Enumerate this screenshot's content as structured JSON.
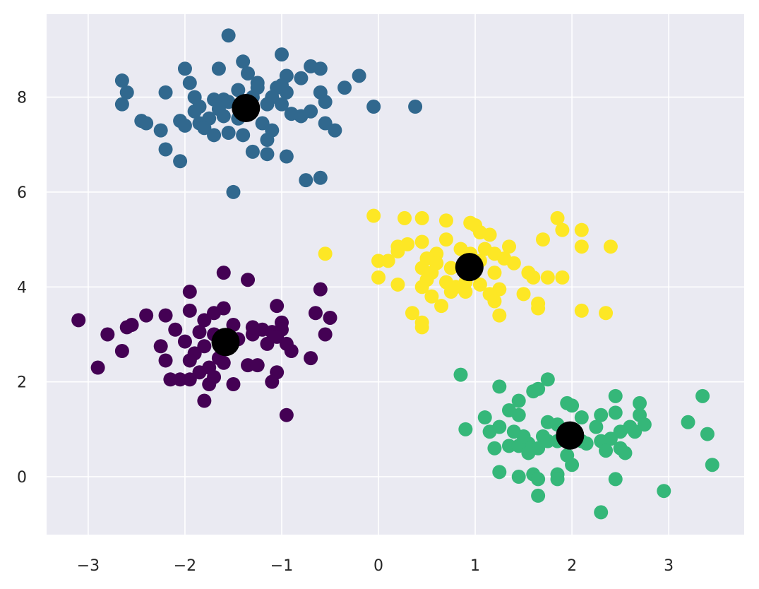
{
  "chart_data": {
    "type": "scatter",
    "title": "",
    "xlabel": "",
    "ylabel": "",
    "xlim": [
      -3.43,
      3.78
    ],
    "ylim": [
      -1.22,
      9.75
    ],
    "grid": true,
    "legend": "none",
    "background_color": "#eaeaf2",
    "grid_color": "#ffffff",
    "x_ticks": [
      -3,
      -2,
      -1,
      0,
      1,
      2,
      3
    ],
    "y_ticks": [
      0,
      2,
      4,
      6,
      8
    ],
    "x_tick_labels": [
      "−3",
      "−2",
      "−1",
      "0",
      "1",
      "2",
      "3"
    ],
    "y_tick_labels": [
      "0",
      "2",
      "4",
      "6",
      "8"
    ],
    "series": [
      {
        "color": "#31688e",
        "points": [
          [
            -1.55,
            9.3
          ],
          [
            -1.0,
            8.9
          ],
          [
            -1.4,
            8.75
          ],
          [
            -0.7,
            8.65
          ],
          [
            -0.6,
            8.6
          ],
          [
            -1.65,
            8.6
          ],
          [
            -2.0,
            8.6
          ],
          [
            -0.2,
            8.45
          ],
          [
            -1.35,
            8.5
          ],
          [
            -0.95,
            8.45
          ],
          [
            -2.65,
            8.35
          ],
          [
            -1.95,
            8.3
          ],
          [
            -1.25,
            8.3
          ],
          [
            -0.8,
            8.4
          ],
          [
            -1.05,
            8.2
          ],
          [
            -1.45,
            8.15
          ],
          [
            -0.35,
            8.2
          ],
          [
            -2.2,
            8.1
          ],
          [
            -2.6,
            8.1
          ],
          [
            -1.9,
            8.0
          ],
          [
            -1.7,
            7.95
          ],
          [
            -1.6,
            7.95
          ],
          [
            -1.1,
            8.0
          ],
          [
            -1.55,
            7.9
          ],
          [
            -0.95,
            8.1
          ],
          [
            -1.3,
            8.0
          ],
          [
            -0.6,
            8.1
          ],
          [
            -2.65,
            7.85
          ],
          [
            -1.85,
            7.8
          ],
          [
            -1.15,
            7.85
          ],
          [
            -0.55,
            7.9
          ],
          [
            -1.0,
            7.85
          ],
          [
            -0.05,
            7.8
          ],
          [
            0.38,
            7.8
          ],
          [
            -1.9,
            7.7
          ],
          [
            -1.6,
            7.6
          ],
          [
            -0.9,
            7.65
          ],
          [
            -0.7,
            7.7
          ],
          [
            -1.75,
            7.55
          ],
          [
            -1.45,
            7.55
          ],
          [
            -2.45,
            7.5
          ],
          [
            -2.05,
            7.5
          ],
          [
            -1.85,
            7.45
          ],
          [
            -0.55,
            7.45
          ],
          [
            -1.2,
            7.45
          ],
          [
            -2.4,
            7.45
          ],
          [
            -2.25,
            7.3
          ],
          [
            -1.8,
            7.35
          ],
          [
            -1.55,
            7.25
          ],
          [
            -1.4,
            7.2
          ],
          [
            -0.45,
            7.3
          ],
          [
            -1.1,
            7.3
          ],
          [
            -1.7,
            7.2
          ],
          [
            -1.15,
            7.1
          ],
          [
            -2.2,
            6.9
          ],
          [
            -1.3,
            6.85
          ],
          [
            -1.15,
            6.8
          ],
          [
            -0.95,
            6.75
          ],
          [
            -2.05,
            6.65
          ],
          [
            -0.75,
            6.25
          ],
          [
            -0.6,
            6.3
          ],
          [
            -1.5,
            6.0
          ],
          [
            -1.35,
            7.9
          ],
          [
            -1.25,
            8.2
          ],
          [
            -1.0,
            8.25
          ],
          [
            -0.8,
            7.6
          ],
          [
            -1.65,
            7.75
          ],
          [
            -2.0,
            7.4
          ]
        ]
      },
      {
        "color": "#fde725",
        "points": [
          [
            -0.05,
            5.5
          ],
          [
            0.27,
            5.45
          ],
          [
            0.45,
            5.45
          ],
          [
            0.7,
            5.4
          ],
          [
            0.95,
            5.35
          ],
          [
            1.0,
            5.3
          ],
          [
            1.85,
            5.45
          ],
          [
            1.05,
            5.15
          ],
          [
            1.15,
            5.1
          ],
          [
            1.9,
            5.2
          ],
          [
            2.1,
            5.2
          ],
          [
            0.7,
            5.0
          ],
          [
            0.45,
            4.95
          ],
          [
            0.3,
            4.9
          ],
          [
            0.2,
            4.85
          ],
          [
            1.35,
            4.85
          ],
          [
            2.4,
            4.85
          ],
          [
            2.1,
            4.85
          ],
          [
            1.7,
            5.0
          ],
          [
            1.1,
            4.8
          ],
          [
            0.85,
            4.8
          ],
          [
            0.2,
            4.75
          ],
          [
            0.6,
            4.7
          ],
          [
            -0.55,
            4.7
          ],
          [
            0.5,
            4.6
          ],
          [
            1.2,
            4.7
          ],
          [
            1.4,
            4.5
          ],
          [
            0.0,
            4.55
          ],
          [
            0.1,
            4.55
          ],
          [
            0.75,
            4.4
          ],
          [
            0.45,
            4.4
          ],
          [
            0.55,
            4.3
          ],
          [
            1.2,
            4.3
          ],
          [
            1.55,
            4.3
          ],
          [
            1.6,
            4.2
          ],
          [
            1.75,
            4.2
          ],
          [
            1.9,
            4.2
          ],
          [
            0.5,
            4.15
          ],
          [
            0.7,
            4.1
          ],
          [
            0.9,
            4.1
          ],
          [
            0.0,
            4.2
          ],
          [
            0.2,
            4.05
          ],
          [
            0.45,
            4.0
          ],
          [
            0.55,
            3.8
          ],
          [
            0.75,
            3.9
          ],
          [
            1.05,
            4.05
          ],
          [
            1.25,
            3.95
          ],
          [
            1.5,
            3.85
          ],
          [
            0.9,
            3.9
          ],
          [
            1.15,
            3.85
          ],
          [
            1.2,
            3.7
          ],
          [
            0.65,
            3.6
          ],
          [
            1.65,
            3.65
          ],
          [
            1.65,
            3.55
          ],
          [
            0.35,
            3.45
          ],
          [
            1.25,
            3.4
          ],
          [
            2.1,
            3.5
          ],
          [
            2.35,
            3.45
          ],
          [
            0.45,
            3.25
          ],
          [
            0.45,
            3.15
          ],
          [
            0.8,
            4.0
          ],
          [
            1.3,
            4.6
          ],
          [
            0.6,
            4.5
          ],
          [
            1.05,
            4.55
          ],
          [
            0.95,
            4.7
          ]
        ]
      },
      {
        "color": "#440154",
        "points": [
          [
            -1.6,
            4.3
          ],
          [
            -1.35,
            4.15
          ],
          [
            -1.95,
            3.9
          ],
          [
            -0.6,
            3.95
          ],
          [
            -1.05,
            3.6
          ],
          [
            -1.6,
            3.55
          ],
          [
            -1.95,
            3.5
          ],
          [
            -2.2,
            3.4
          ],
          [
            -2.4,
            3.4
          ],
          [
            -1.7,
            3.45
          ],
          [
            -0.65,
            3.45
          ],
          [
            -0.5,
            3.35
          ],
          [
            -3.1,
            3.3
          ],
          [
            -1.8,
            3.3
          ],
          [
            -1.5,
            3.2
          ],
          [
            -1.0,
            3.25
          ],
          [
            -2.55,
            3.2
          ],
          [
            -2.6,
            3.15
          ],
          [
            -2.1,
            3.1
          ],
          [
            -1.85,
            3.05
          ],
          [
            -1.3,
            3.0
          ],
          [
            -1.2,
            3.1
          ],
          [
            -1.1,
            3.05
          ],
          [
            -1.0,
            3.1
          ],
          [
            -2.8,
            3.0
          ],
          [
            -1.7,
            3.0
          ],
          [
            -0.55,
            3.0
          ],
          [
            -1.45,
            2.9
          ],
          [
            -1.15,
            2.8
          ],
          [
            -2.0,
            2.85
          ],
          [
            -1.8,
            2.75
          ],
          [
            -0.95,
            2.8
          ],
          [
            -2.25,
            2.75
          ],
          [
            -2.65,
            2.65
          ],
          [
            -1.9,
            2.6
          ],
          [
            -1.65,
            2.5
          ],
          [
            -0.9,
            2.65
          ],
          [
            -0.7,
            2.5
          ],
          [
            -2.2,
            2.45
          ],
          [
            -1.95,
            2.45
          ],
          [
            -1.6,
            2.4
          ],
          [
            -1.35,
            2.35
          ],
          [
            -1.25,
            2.35
          ],
          [
            -1.75,
            2.3
          ],
          [
            -1.85,
            2.2
          ],
          [
            -1.05,
            2.2
          ],
          [
            -2.9,
            2.3
          ],
          [
            -1.7,
            2.1
          ],
          [
            -2.05,
            2.05
          ],
          [
            -1.95,
            2.05
          ],
          [
            -1.1,
            2.0
          ],
          [
            -2.15,
            2.05
          ],
          [
            -1.75,
            1.95
          ],
          [
            -1.5,
            1.95
          ],
          [
            -1.8,
            1.6
          ],
          [
            -0.95,
            1.3
          ],
          [
            -1.3,
            3.15
          ],
          [
            -1.05,
            2.95
          ]
        ]
      },
      {
        "color": "#35b779",
        "points": [
          [
            0.85,
            2.15
          ],
          [
            1.75,
            2.05
          ],
          [
            1.25,
            1.9
          ],
          [
            1.65,
            1.85
          ],
          [
            1.6,
            1.8
          ],
          [
            2.45,
            1.7
          ],
          [
            3.35,
            1.7
          ],
          [
            1.45,
            1.6
          ],
          [
            1.95,
            1.55
          ],
          [
            2.7,
            1.55
          ],
          [
            1.35,
            1.4
          ],
          [
            2.0,
            1.5
          ],
          [
            1.1,
            1.25
          ],
          [
            1.45,
            1.3
          ],
          [
            2.3,
            1.3
          ],
          [
            2.45,
            1.35
          ],
          [
            2.7,
            1.3
          ],
          [
            3.2,
            1.15
          ],
          [
            1.75,
            1.15
          ],
          [
            1.85,
            1.1
          ],
          [
            2.75,
            1.1
          ],
          [
            2.6,
            1.05
          ],
          [
            0.9,
            1.0
          ],
          [
            1.15,
            0.95
          ],
          [
            1.25,
            1.05
          ],
          [
            1.4,
            0.95
          ],
          [
            2.1,
            1.25
          ],
          [
            2.25,
            1.05
          ],
          [
            2.5,
            0.95
          ],
          [
            2.65,
            0.95
          ],
          [
            3.4,
            0.9
          ],
          [
            1.55,
            0.7
          ],
          [
            1.7,
            0.85
          ],
          [
            2.1,
            0.75
          ],
          [
            2.3,
            0.75
          ],
          [
            2.4,
            0.8
          ],
          [
            1.2,
            0.6
          ],
          [
            1.35,
            0.65
          ],
          [
            1.45,
            0.65
          ],
          [
            1.65,
            0.6
          ],
          [
            1.85,
            0.75
          ],
          [
            2.15,
            0.7
          ],
          [
            2.35,
            0.55
          ],
          [
            2.5,
            0.6
          ],
          [
            2.55,
            0.5
          ],
          [
            1.55,
            0.5
          ],
          [
            1.95,
            0.45
          ],
          [
            2.0,
            0.25
          ],
          [
            3.45,
            0.25
          ],
          [
            1.25,
            0.1
          ],
          [
            1.6,
            0.05
          ],
          [
            1.85,
            0.05
          ],
          [
            1.45,
            0.0
          ],
          [
            1.65,
            -0.05
          ],
          [
            1.85,
            -0.05
          ],
          [
            2.45,
            -0.05
          ],
          [
            2.95,
            -0.3
          ],
          [
            1.65,
            -0.4
          ],
          [
            2.3,
            -0.75
          ],
          [
            1.75,
            0.75
          ],
          [
            2.05,
            0.9
          ],
          [
            1.5,
            0.85
          ]
        ]
      }
    ],
    "centers": {
      "color": "#000000",
      "points": [
        [
          -1.37,
          7.77
        ],
        [
          0.94,
          4.42
        ],
        [
          -1.58,
          2.84
        ],
        [
          1.98,
          0.87
        ]
      ]
    }
  }
}
